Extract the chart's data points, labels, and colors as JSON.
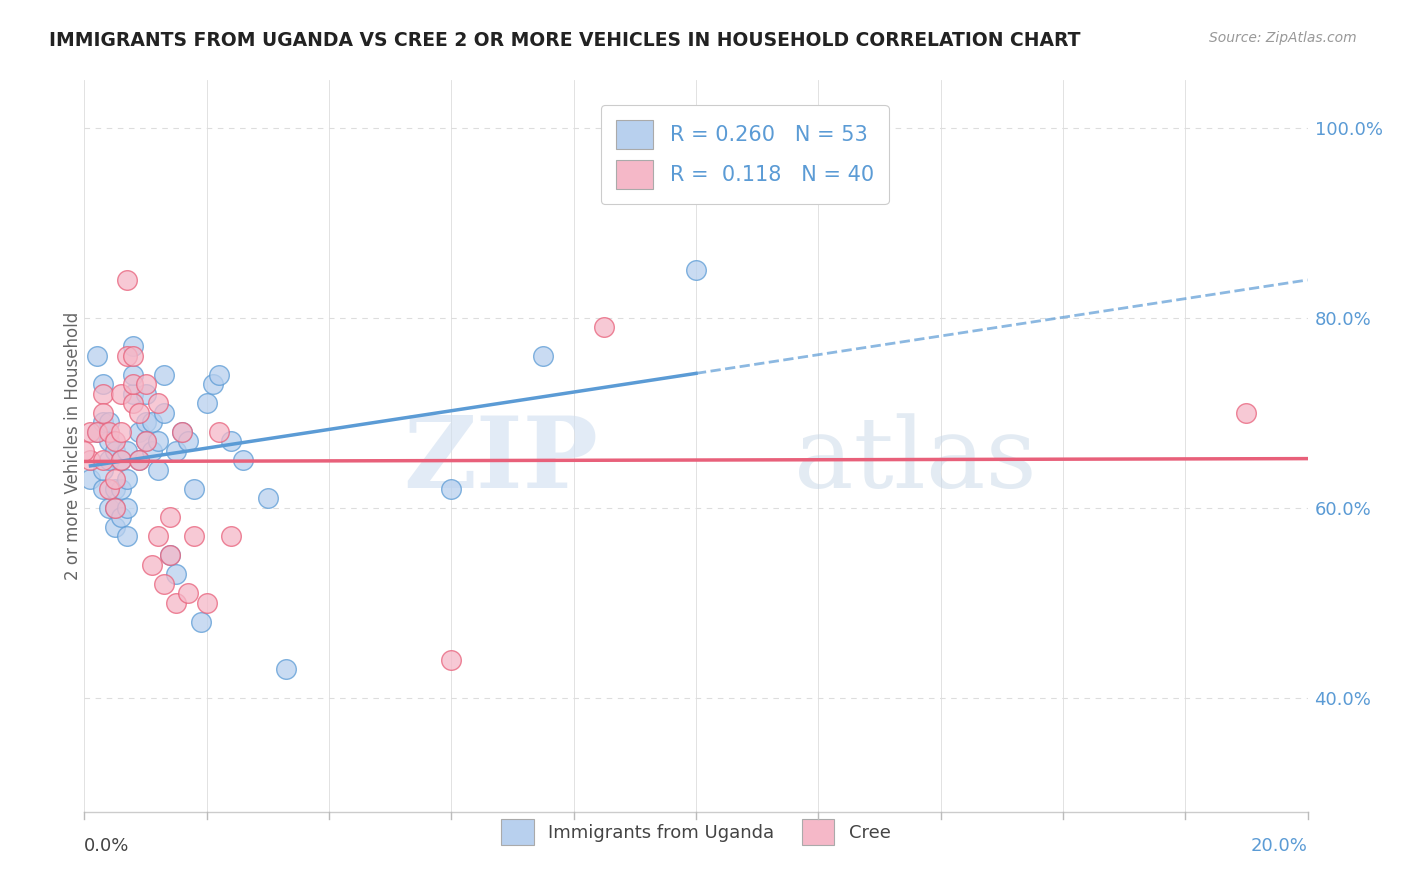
{
  "title": "IMMIGRANTS FROM UGANDA VS CREE 2 OR MORE VEHICLES IN HOUSEHOLD CORRELATION CHART",
  "source": "Source: ZipAtlas.com",
  "ylabel": "2 or more Vehicles in Household",
  "ytick_labels": [
    "100.0%",
    "80.0%",
    "60.0%",
    "40.0%"
  ],
  "ytick_values": [
    1.0,
    0.8,
    0.6,
    0.4
  ],
  "xlim": [
    0.0,
    0.2
  ],
  "ylim": [
    0.28,
    1.05
  ],
  "r_uganda": 0.26,
  "n_uganda": 53,
  "r_cree": 0.118,
  "n_cree": 40,
  "color_uganda": "#b8d0ee",
  "color_cree": "#f5b8c8",
  "trend_color_uganda": "#5b9bd5",
  "trend_color_cree": "#e8607a",
  "grid_color": "#dddddd",
  "title_color": "#222222",
  "axis_label_color": "#5b9bd5",
  "uganda_x": [
    0.001,
    0.002,
    0.002,
    0.003,
    0.003,
    0.003,
    0.003,
    0.004,
    0.004,
    0.004,
    0.004,
    0.005,
    0.005,
    0.005,
    0.005,
    0.006,
    0.006,
    0.006,
    0.007,
    0.007,
    0.007,
    0.007,
    0.008,
    0.008,
    0.008,
    0.009,
    0.009,
    0.01,
    0.01,
    0.01,
    0.011,
    0.011,
    0.012,
    0.012,
    0.013,
    0.013,
    0.014,
    0.015,
    0.015,
    0.016,
    0.017,
    0.018,
    0.019,
    0.02,
    0.021,
    0.022,
    0.024,
    0.026,
    0.03,
    0.033,
    0.06,
    0.075,
    0.1
  ],
  "uganda_y": [
    0.63,
    0.76,
    0.68,
    0.62,
    0.64,
    0.69,
    0.73,
    0.6,
    0.65,
    0.67,
    0.69,
    0.58,
    0.6,
    0.62,
    0.66,
    0.59,
    0.62,
    0.65,
    0.57,
    0.6,
    0.63,
    0.66,
    0.72,
    0.74,
    0.77,
    0.65,
    0.68,
    0.67,
    0.69,
    0.72,
    0.66,
    0.69,
    0.64,
    0.67,
    0.7,
    0.74,
    0.55,
    0.53,
    0.66,
    0.68,
    0.67,
    0.62,
    0.48,
    0.71,
    0.73,
    0.74,
    0.67,
    0.65,
    0.61,
    0.43,
    0.62,
    0.76,
    0.85
  ],
  "cree_x": [
    0.001,
    0.001,
    0.002,
    0.003,
    0.003,
    0.003,
    0.004,
    0.004,
    0.005,
    0.005,
    0.005,
    0.006,
    0.006,
    0.006,
    0.007,
    0.007,
    0.008,
    0.008,
    0.008,
    0.009,
    0.009,
    0.01,
    0.01,
    0.011,
    0.012,
    0.012,
    0.013,
    0.014,
    0.014,
    0.015,
    0.016,
    0.017,
    0.018,
    0.02,
    0.022,
    0.024,
    0.06,
    0.085,
    0.19,
    0.0
  ],
  "cree_y": [
    0.65,
    0.68,
    0.68,
    0.72,
    0.65,
    0.7,
    0.62,
    0.68,
    0.6,
    0.63,
    0.67,
    0.65,
    0.68,
    0.72,
    0.76,
    0.84,
    0.71,
    0.73,
    0.76,
    0.65,
    0.7,
    0.73,
    0.67,
    0.54,
    0.57,
    0.71,
    0.52,
    0.55,
    0.59,
    0.5,
    0.68,
    0.51,
    0.57,
    0.5,
    0.68,
    0.57,
    0.44,
    0.79,
    0.7,
    0.66
  ],
  "watermark_zip": "ZIP",
  "watermark_atlas": "atlas"
}
